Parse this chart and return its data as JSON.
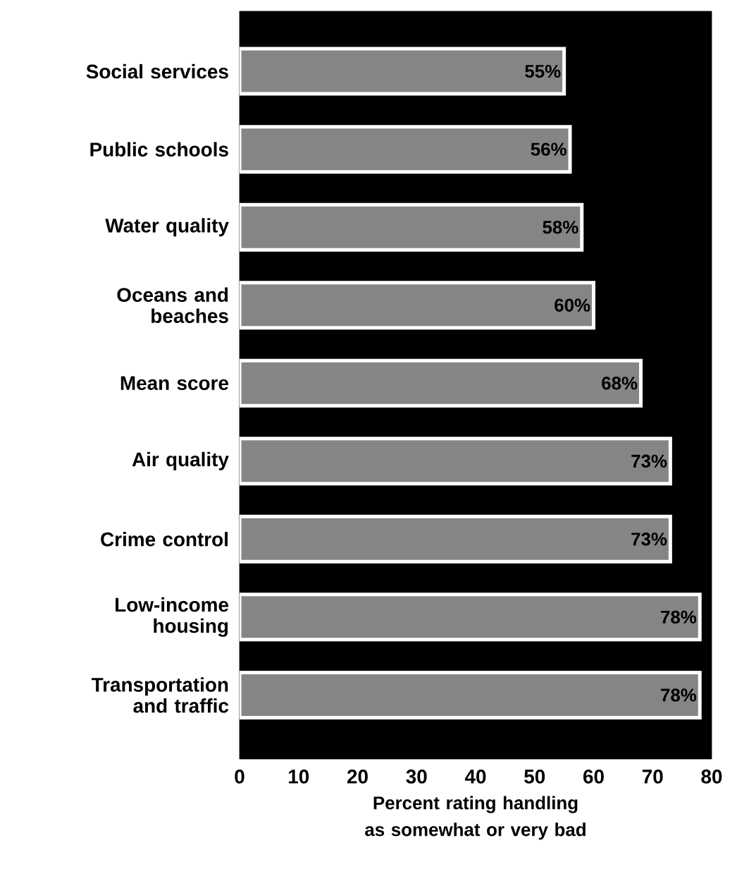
{
  "chart_data": {
    "type": "bar",
    "orientation": "horizontal",
    "categories": [
      "Social services",
      "Public schools",
      "Water quality",
      "Oceans and beaches",
      "Mean score",
      "Air quality",
      "Crime control",
      "Low-income housing",
      "Transportation and traffic"
    ],
    "values": [
      55,
      56,
      58,
      60,
      68,
      73,
      73,
      78,
      78
    ],
    "value_labels": [
      "55%",
      "56%",
      "58%",
      "60%",
      "68%",
      "73%",
      "73%",
      "78%",
      "78%"
    ],
    "color": "#858585",
    "xlabel": "Percent rating handling as somewhat or very bad",
    "xlim": [
      0,
      80
    ],
    "xticks": [
      0,
      10,
      20,
      30,
      40,
      50,
      60,
      70,
      80
    ]
  }
}
